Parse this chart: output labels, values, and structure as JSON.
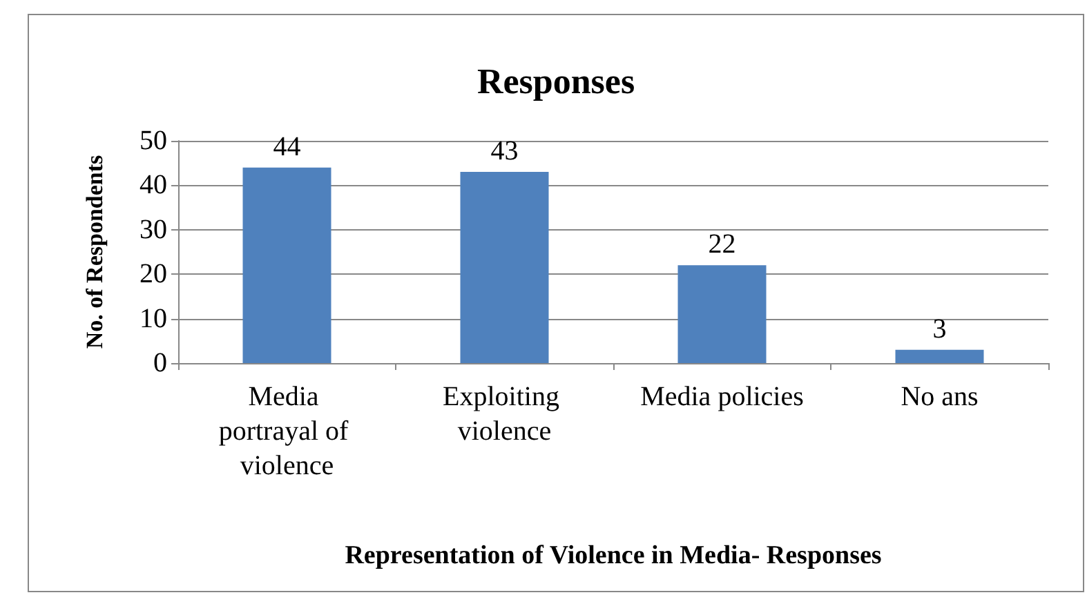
{
  "chart_data": {
    "type": "bar",
    "title": "Responses",
    "xlabel": "Representation of Violence in Media- Responses",
    "ylabel": "No. of Respondents",
    "categories": [
      "Media portrayal of violence",
      "Exploiting violence",
      "Media policies",
      "No ans"
    ],
    "values": [
      44,
      43,
      22,
      3
    ],
    "color": "#4f81bd",
    "data_labels": true,
    "ylim": [
      0,
      50
    ],
    "yticks": [
      0,
      10,
      20,
      30,
      40,
      50
    ],
    "grid": "y"
  }
}
